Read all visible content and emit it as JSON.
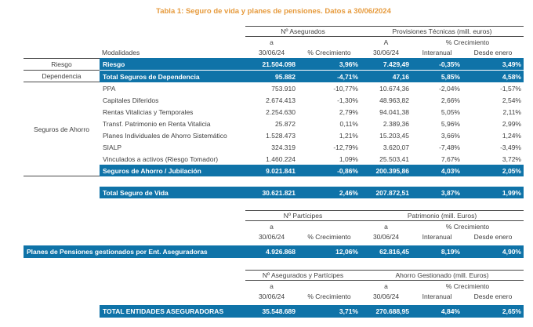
{
  "title": "Tabla 1: Seguro de vida y planes de pensiones. Datos a 30/06/2024",
  "colors": {
    "accent_blue": "#0F73A8",
    "title_orange": "#E69A3C"
  },
  "s1": {
    "header": {
      "group_a": "Nº Asegurados",
      "group_b": "Provisiones Técnicas (mill. euros)",
      "sub_a": "a",
      "sub_b": "A",
      "sub_pct": "% Crecimiento",
      "modalidades": "Modalidades",
      "cols": [
        "30/06/24",
        "% Crecimiento",
        "30/06/24",
        "Interanual",
        "Desde enero"
      ]
    },
    "groups": [
      "Riesgo",
      "Dependencia",
      "Seguros de Ahorro"
    ],
    "rows": [
      {
        "label": "Riesgo",
        "values": [
          "21.504.098",
          "3,96%",
          "7.429,49",
          "-0,35%",
          "3,49%"
        ]
      },
      {
        "label": "Total Seguros de Dependencia",
        "values": [
          "95.882",
          "-4,71%",
          "47,16",
          "5,85%",
          "4,58%"
        ]
      },
      {
        "label": "PPA",
        "values": [
          "753.910",
          "-10,77%",
          "10.674,36",
          "-2,04%",
          "-1,57%"
        ]
      },
      {
        "label": "Capitales Diferidos",
        "values": [
          "2.674.413",
          "-1,30%",
          "48.963,82",
          "2,66%",
          "2,54%"
        ]
      },
      {
        "label": "Rentas Vitalicias y Temporales",
        "values": [
          "2.254.630",
          "2,79%",
          "94.041,38",
          "5,05%",
          "2,11%"
        ]
      },
      {
        "label": "Transf. Patrimonio en Renta Vitalicia",
        "values": [
          "25.872",
          "0,11%",
          "2.389,36",
          "5,96%",
          "2,99%"
        ]
      },
      {
        "label": "Planes Individuales de Ahorro Sistemático",
        "values": [
          "1.528.473",
          "1,21%",
          "15.203,45",
          "3,66%",
          "1,24%"
        ]
      },
      {
        "label": "SIALP",
        "values": [
          "324.319",
          "-12,79%",
          "3.620,07",
          "-7,48%",
          "-3,49%"
        ]
      },
      {
        "label": "Vinculados a activos (Riesgo Tomador)",
        "values": [
          "1.460.224",
          "1,09%",
          "25.503,41",
          "7,67%",
          "3,72%"
        ]
      },
      {
        "label": "Seguros de Ahorro / Jubilación",
        "values": [
          "9.021.841",
          "-0,86%",
          "200.395,86",
          "4,03%",
          "2,05%"
        ]
      }
    ],
    "total": {
      "label": "Total Seguro de Vida",
      "values": [
        "30.621.821",
        "2,46%",
        "207.872,51",
        "3,87%",
        "1,99%"
      ]
    }
  },
  "s2": {
    "header": {
      "group_a": "Nº Partícipes",
      "group_b": "Patrimonio (mill. Euros)",
      "sub_a": "a",
      "sub_b": "a",
      "sub_pct": "% Crecimiento",
      "cols": [
        "30/06/24",
        "% Crecimiento",
        "30/06/24",
        "Interanual",
        "Desde enero"
      ]
    },
    "row": {
      "label": "Planes de Pensiones gestionados por Ent. Aseguradoras",
      "values": [
        "4.926.868",
        "12,06%",
        "62.816,45",
        "8,19%",
        "4,90%"
      ]
    }
  },
  "s3": {
    "header": {
      "group_a": "Nº Asegurados y Partícipes",
      "group_b": "Ahorro Gestionado (mill. Euros)",
      "sub_a": "a",
      "sub_b": "a",
      "sub_pct": "% Crecimiento",
      "cols": [
        "30/06/24",
        "% Crecimiento",
        "30/06/24",
        "Interanual",
        "Desde enero"
      ]
    },
    "row": {
      "label": "TOTAL ENTIDADES ASEGURADORAS",
      "values": [
        "35.548.689",
        "3,71%",
        "270.688,95",
        "4,84%",
        "2,65%"
      ]
    }
  }
}
